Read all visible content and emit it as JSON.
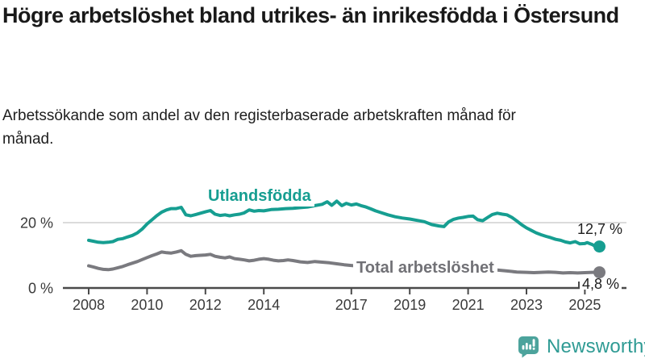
{
  "header": {
    "title": "Högre arbetslöshet bland utrikes- än inrikesfödda i Östersund",
    "subtitle": "Arbetssökande som andel av den registerbaserade arbetskraften månad för månad."
  },
  "footer": {
    "brand": "Newsworthy",
    "brand_color": "#2f9b94",
    "logo_icon": "bar-chart-speech-bubble-icon"
  },
  "colors": {
    "background": "#ffffff",
    "title_text": "#191919",
    "axis": "#4a4a4a",
    "gridline": "#dbdbdb",
    "tick_label": "#3a3a3a",
    "value_label": "#1e1e1e"
  },
  "chart_data": {
    "type": "line",
    "unit": "%",
    "x_axis": {
      "ticks": [
        2008,
        2010,
        2012,
        2014,
        2017,
        2019,
        2021,
        2023,
        2025
      ],
      "tick_labels": [
        "2008",
        "2010",
        "2012",
        "2014",
        "2017",
        "2019",
        "2021",
        "2023",
        "2025"
      ],
      "range": [
        2008,
        2026.3
      ]
    },
    "y_axis": {
      "ticks": [
        0,
        20
      ],
      "tick_labels": [
        "0 %",
        "20 %"
      ],
      "gridlines": [
        20
      ],
      "range": [
        0,
        28
      ]
    },
    "legend_position": "inline-labels",
    "series": [
      {
        "name": "Utlandsfödda",
        "color": "#169e91",
        "end_value": 12.7,
        "end_label": "12,7 %",
        "points": [
          [
            2008.0,
            14.6
          ],
          [
            2008.17,
            14.3
          ],
          [
            2008.33,
            14.0
          ],
          [
            2008.5,
            13.9
          ],
          [
            2008.67,
            14.0
          ],
          [
            2008.83,
            14.2
          ],
          [
            2009.0,
            14.9
          ],
          [
            2009.17,
            15.1
          ],
          [
            2009.33,
            15.6
          ],
          [
            2009.5,
            16.1
          ],
          [
            2009.67,
            16.9
          ],
          [
            2009.83,
            18.0
          ],
          [
            2010.0,
            19.6
          ],
          [
            2010.17,
            20.9
          ],
          [
            2010.33,
            22.1
          ],
          [
            2010.5,
            23.2
          ],
          [
            2010.67,
            23.9
          ],
          [
            2010.83,
            24.3
          ],
          [
            2011.0,
            24.3
          ],
          [
            2011.17,
            24.7
          ],
          [
            2011.33,
            22.4
          ],
          [
            2011.5,
            22.1
          ],
          [
            2011.67,
            22.5
          ],
          [
            2011.83,
            22.9
          ],
          [
            2012.0,
            23.3
          ],
          [
            2012.17,
            23.7
          ],
          [
            2012.33,
            22.6
          ],
          [
            2012.5,
            22.2
          ],
          [
            2012.67,
            22.4
          ],
          [
            2012.83,
            22.1
          ],
          [
            2013.0,
            22.4
          ],
          [
            2013.17,
            22.6
          ],
          [
            2013.33,
            23.0
          ],
          [
            2013.5,
            23.9
          ],
          [
            2013.67,
            23.5
          ],
          [
            2013.83,
            23.7
          ],
          [
            2014.0,
            23.6
          ],
          [
            2014.25,
            24.0
          ],
          [
            2014.5,
            24.1
          ],
          [
            2014.75,
            24.3
          ],
          [
            2015.0,
            24.4
          ],
          [
            2015.25,
            24.6
          ],
          [
            2015.5,
            24.8
          ],
          [
            2015.75,
            25.2
          ],
          [
            2016.0,
            25.6
          ],
          [
            2016.17,
            26.4
          ],
          [
            2016.33,
            25.3
          ],
          [
            2016.5,
            26.6
          ],
          [
            2016.67,
            25.2
          ],
          [
            2016.83,
            25.9
          ],
          [
            2017.0,
            25.4
          ],
          [
            2017.17,
            25.7
          ],
          [
            2017.33,
            25.2
          ],
          [
            2017.5,
            24.8
          ],
          [
            2017.67,
            24.2
          ],
          [
            2017.83,
            23.6
          ],
          [
            2018.0,
            23.1
          ],
          [
            2018.25,
            22.4
          ],
          [
            2018.5,
            21.8
          ],
          [
            2018.75,
            21.4
          ],
          [
            2019.0,
            21.1
          ],
          [
            2019.25,
            20.7
          ],
          [
            2019.5,
            20.3
          ],
          [
            2019.75,
            19.4
          ],
          [
            2020.0,
            19.0
          ],
          [
            2020.17,
            18.8
          ],
          [
            2020.33,
            20.2
          ],
          [
            2020.5,
            21.0
          ],
          [
            2020.67,
            21.4
          ],
          [
            2020.83,
            21.6
          ],
          [
            2021.0,
            21.9
          ],
          [
            2021.17,
            22.0
          ],
          [
            2021.33,
            20.9
          ],
          [
            2021.5,
            20.6
          ],
          [
            2021.67,
            21.6
          ],
          [
            2021.83,
            22.5
          ],
          [
            2022.0,
            22.9
          ],
          [
            2022.17,
            22.6
          ],
          [
            2022.33,
            22.4
          ],
          [
            2022.5,
            21.6
          ],
          [
            2022.67,
            20.5
          ],
          [
            2022.83,
            19.4
          ],
          [
            2023.0,
            18.4
          ],
          [
            2023.17,
            17.6
          ],
          [
            2023.33,
            16.9
          ],
          [
            2023.5,
            16.3
          ],
          [
            2023.67,
            15.8
          ],
          [
            2023.83,
            15.4
          ],
          [
            2024.0,
            14.9
          ],
          [
            2024.17,
            14.6
          ],
          [
            2024.33,
            14.1
          ],
          [
            2024.5,
            13.8
          ],
          [
            2024.67,
            14.2
          ],
          [
            2024.83,
            13.5
          ],
          [
            2025.0,
            13.6
          ],
          [
            2025.08,
            13.9
          ],
          [
            2025.25,
            13.3
          ],
          [
            2025.33,
            12.9
          ],
          [
            2025.5,
            12.7
          ]
        ]
      },
      {
        "name": "Total arbetslöshet",
        "color": "#7a7a7f",
        "end_value": 4.8,
        "end_label": "4,8 %",
        "points": [
          [
            2008.0,
            6.8
          ],
          [
            2008.17,
            6.4
          ],
          [
            2008.33,
            6.0
          ],
          [
            2008.5,
            5.7
          ],
          [
            2008.67,
            5.6
          ],
          [
            2008.83,
            5.8
          ],
          [
            2009.0,
            6.2
          ],
          [
            2009.17,
            6.6
          ],
          [
            2009.33,
            7.1
          ],
          [
            2009.5,
            7.6
          ],
          [
            2009.67,
            8.1
          ],
          [
            2009.83,
            8.7
          ],
          [
            2010.0,
            9.3
          ],
          [
            2010.17,
            9.9
          ],
          [
            2010.33,
            10.4
          ],
          [
            2010.5,
            11.0
          ],
          [
            2010.67,
            10.8
          ],
          [
            2010.83,
            10.7
          ],
          [
            2011.0,
            11.0
          ],
          [
            2011.17,
            11.4
          ],
          [
            2011.33,
            10.3
          ],
          [
            2011.5,
            9.7
          ],
          [
            2011.67,
            9.9
          ],
          [
            2011.83,
            10.0
          ],
          [
            2012.0,
            10.1
          ],
          [
            2012.17,
            10.3
          ],
          [
            2012.33,
            9.7
          ],
          [
            2012.5,
            9.4
          ],
          [
            2012.67,
            9.2
          ],
          [
            2012.83,
            9.5
          ],
          [
            2013.0,
            9.0
          ],
          [
            2013.17,
            8.8
          ],
          [
            2013.33,
            8.6
          ],
          [
            2013.5,
            8.3
          ],
          [
            2013.67,
            8.5
          ],
          [
            2013.83,
            8.8
          ],
          [
            2014.0,
            9.0
          ],
          [
            2014.17,
            8.8
          ],
          [
            2014.33,
            8.5
          ],
          [
            2014.5,
            8.3
          ],
          [
            2014.67,
            8.4
          ],
          [
            2014.83,
            8.6
          ],
          [
            2015.0,
            8.4
          ],
          [
            2015.25,
            8.0
          ],
          [
            2015.5,
            7.8
          ],
          [
            2015.75,
            8.1
          ],
          [
            2016.0,
            7.9
          ],
          [
            2016.25,
            7.7
          ],
          [
            2016.5,
            7.4
          ],
          [
            2016.75,
            7.1
          ],
          [
            2017.0,
            6.9
          ],
          [
            2017.25,
            6.7
          ],
          [
            2017.5,
            6.5
          ],
          [
            2017.75,
            6.3
          ],
          [
            2018.0,
            6.2
          ],
          [
            2018.33,
            6.0
          ],
          [
            2018.67,
            5.9
          ],
          [
            2019.0,
            5.8
          ],
          [
            2019.33,
            5.7
          ],
          [
            2019.67,
            5.8
          ],
          [
            2020.0,
            6.0
          ],
          [
            2020.33,
            6.5
          ],
          [
            2020.67,
            6.6
          ],
          [
            2021.0,
            6.4
          ],
          [
            2021.33,
            6.1
          ],
          [
            2021.67,
            5.8
          ],
          [
            2022.0,
            5.5
          ],
          [
            2022.33,
            5.2
          ],
          [
            2022.67,
            4.9
          ],
          [
            2023.0,
            4.8
          ],
          [
            2023.25,
            4.7
          ],
          [
            2023.5,
            4.8
          ],
          [
            2023.75,
            4.9
          ],
          [
            2024.0,
            4.8
          ],
          [
            2024.25,
            4.6
          ],
          [
            2024.5,
            4.7
          ],
          [
            2024.75,
            4.6
          ],
          [
            2025.0,
            4.7
          ],
          [
            2025.25,
            4.8
          ],
          [
            2025.5,
            4.8
          ]
        ]
      }
    ]
  }
}
